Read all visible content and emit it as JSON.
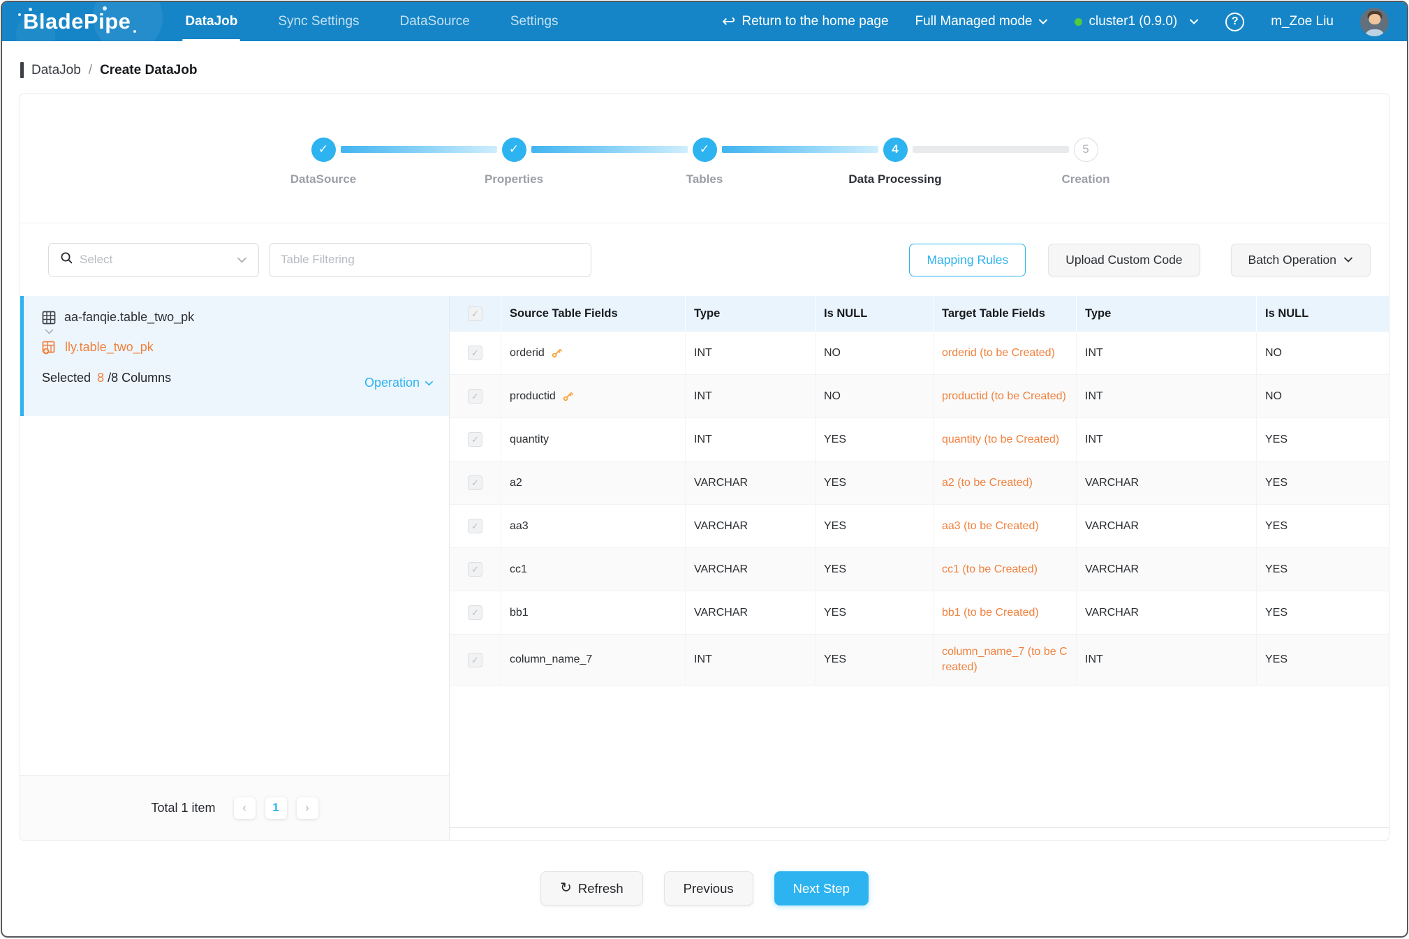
{
  "colors": {
    "navbar_bg": "#1585c7",
    "accent": "#2db3f0",
    "orange": "#f0813e",
    "key_icon": "#f9a23d",
    "green_dot": "#4fcb3f",
    "header_bg": "#e9f4fd",
    "selected_card_bg": "#eef6fd"
  },
  "icons": {
    "return_home": "↩",
    "refresh": "↻",
    "help": "?",
    "check": "✓",
    "pager_prev": "‹",
    "pager_next": "›"
  },
  "navbar": {
    "logo": "BladePipe",
    "items": [
      {
        "label": "DataJob",
        "active": true
      },
      {
        "label": "Sync Settings",
        "active": false
      },
      {
        "label": "DataSource",
        "active": false
      },
      {
        "label": "Settings",
        "active": false
      }
    ],
    "return_home_label": "Return to the home page",
    "mode_label": "Full Managed mode",
    "cluster_label": "cluster1 (0.9.0)",
    "username": "m_Zoe Liu"
  },
  "breadcrumb": {
    "parent": "DataJob",
    "separator": "/",
    "current": "Create DataJob"
  },
  "stepper": {
    "steps": [
      {
        "label": "DataSource",
        "state": "done"
      },
      {
        "label": "Properties",
        "state": "done"
      },
      {
        "label": "Tables",
        "state": "done"
      },
      {
        "label": "Data Processing",
        "state": "active",
        "number": "4"
      },
      {
        "label": "Creation",
        "state": "pending",
        "number": "5"
      }
    ]
  },
  "toolbar": {
    "select_placeholder": "Select",
    "filter_placeholder": "Table Filtering",
    "mapping_rules_label": "Mapping Rules",
    "upload_custom_code_label": "Upload Custom Code",
    "batch_operation_label": "Batch Operation"
  },
  "left_panel": {
    "source_table": "aa-fanqie.table_two_pk",
    "target_table": "lly.table_two_pk",
    "selected_prefix": "Selected",
    "selected_count": "8",
    "selected_suffix": "/8 Columns",
    "operation_label": "Operation",
    "total_label": "Total 1 item",
    "current_page": "1"
  },
  "table": {
    "headers": [
      "Source Table Fields",
      "Type",
      "Is NULL",
      "Target Table Fields",
      "Type",
      "Is NULL"
    ],
    "rows": [
      {
        "source": "orderid",
        "pk": true,
        "type": "INT",
        "is_null": "NO",
        "target": "orderid (to be Created)",
        "target_type": "INT",
        "target_null": "NO"
      },
      {
        "source": "productid",
        "pk": true,
        "type": "INT",
        "is_null": "NO",
        "target": "productid (to be Created)",
        "target_type": "INT",
        "target_null": "NO"
      },
      {
        "source": "quantity",
        "pk": false,
        "type": "INT",
        "is_null": "YES",
        "target": "quantity (to be Created)",
        "target_type": "INT",
        "target_null": "YES"
      },
      {
        "source": "a2",
        "pk": false,
        "type": "VARCHAR",
        "is_null": "YES",
        "target": "a2 (to be Created)",
        "target_type": "VARCHAR",
        "target_null": "YES"
      },
      {
        "source": "aa3",
        "pk": false,
        "type": "VARCHAR",
        "is_null": "YES",
        "target": "aa3 (to be Created)",
        "target_type": "VARCHAR",
        "target_null": "YES"
      },
      {
        "source": "cc1",
        "pk": false,
        "type": "VARCHAR",
        "is_null": "YES",
        "target": "cc1 (to be Created)",
        "target_type": "VARCHAR",
        "target_null": "YES"
      },
      {
        "source": "bb1",
        "pk": false,
        "type": "VARCHAR",
        "is_null": "YES",
        "target": "bb1 (to be Created)",
        "target_type": "VARCHAR",
        "target_null": "YES"
      },
      {
        "source": "column_name_7",
        "pk": false,
        "type": "INT",
        "is_null": "YES",
        "target": "column_name_7 (to be Created)",
        "target_type": "INT",
        "target_null": "YES"
      }
    ]
  },
  "footer": {
    "refresh_label": "Refresh",
    "previous_label": "Previous",
    "next_label": "Next Step"
  }
}
